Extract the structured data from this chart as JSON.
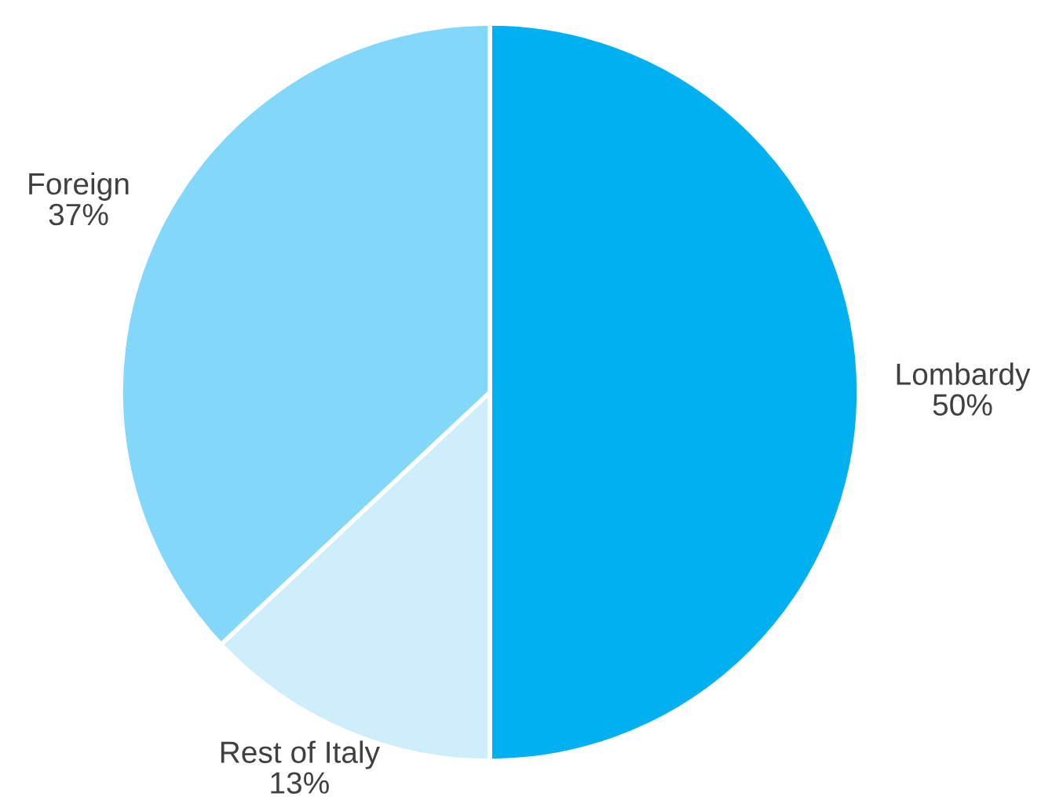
{
  "chart_data": {
    "type": "pie",
    "categories": [
      "Lombardy",
      "Rest of Italy",
      "Foreign"
    ],
    "values": [
      50,
      13,
      37
    ],
    "colors": [
      "#00b0f0",
      "#cdeefa",
      "#83d7f9"
    ],
    "value_labels": [
      "50%",
      "13%",
      "37%"
    ]
  }
}
